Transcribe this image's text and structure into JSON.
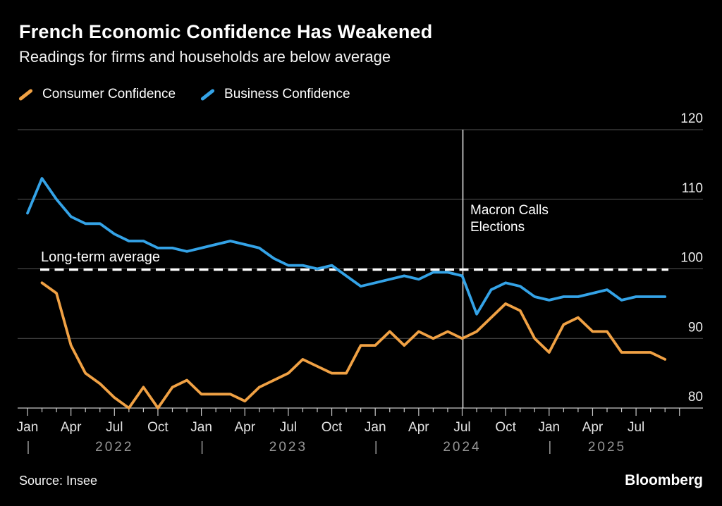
{
  "header": {
    "title": "French Economic Confidence Has Weakened",
    "subtitle": "Readings for firms and households are below average"
  },
  "legend": [
    {
      "label": "Consumer Confidence",
      "color": "#F0A144"
    },
    {
      "label": "Business Confidence",
      "color": "#34A3E7"
    }
  ],
  "annotations": {
    "long_term_average_label": "Long-term average",
    "macron": {
      "lines": [
        "Macron Calls",
        "Elections"
      ]
    }
  },
  "footer": {
    "source": "Source: Insee",
    "brand": "Bloomberg"
  },
  "chart_data": {
    "type": "line",
    "title": "French Economic Confidence Has Weakened",
    "subtitle": "Readings for firms and households are below average",
    "frequency": "monthly",
    "x_start": "2022-01",
    "x_end": "2025-09",
    "ylim": [
      80,
      120
    ],
    "yticks": [
      80,
      90,
      100,
      110,
      120
    ],
    "grid": "horizontal",
    "legend_position": "top-left",
    "colors": {
      "consumer": "#F0A144",
      "business": "#34A3E7",
      "gridline": "#555555",
      "axis": "#c8c8c8",
      "month_label": "#e3e3e3",
      "year_label": "#969696",
      "ytick_label": "#ededed",
      "reference_line": "#ffffff",
      "event_line": "#dedede"
    },
    "x_tick_labels": [
      {
        "i": 0,
        "label": "Jan"
      },
      {
        "i": 3,
        "label": "Apr"
      },
      {
        "i": 6,
        "label": "Jul"
      },
      {
        "i": 9,
        "label": "Oct"
      },
      {
        "i": 12,
        "label": "Jan"
      },
      {
        "i": 15,
        "label": "Apr"
      },
      {
        "i": 18,
        "label": "Jul"
      },
      {
        "i": 21,
        "label": "Oct"
      },
      {
        "i": 24,
        "label": "Jan"
      },
      {
        "i": 27,
        "label": "Apr"
      },
      {
        "i": 30,
        "label": "Jul"
      },
      {
        "i": 33,
        "label": "Oct"
      },
      {
        "i": 36,
        "label": "Jan"
      },
      {
        "i": 39,
        "label": "Apr"
      },
      {
        "i": 42,
        "label": "Jul"
      }
    ],
    "year_labels": [
      {
        "label": "2022",
        "i": 6
      },
      {
        "label": "2023",
        "i": 18
      },
      {
        "label": "2024",
        "i": 30
      },
      {
        "label": "2025",
        "i": 40
      }
    ],
    "year_separators": [
      0,
      12,
      24,
      36
    ],
    "reference_line": {
      "label": "Long-term average",
      "value": 99.9
    },
    "event_line": {
      "label": "Macron Calls Elections",
      "x_index": 30,
      "x_month": "2024-07"
    },
    "series": [
      {
        "name": "Consumer Confidence",
        "color": "#F0A144",
        "start_index": 1,
        "start_month": "2022-02",
        "values": [
          98,
          96.5,
          89,
          85,
          83.5,
          81.5,
          80,
          83,
          80,
          83,
          84,
          82,
          82,
          82,
          81,
          83,
          84,
          85,
          87,
          86,
          85,
          85,
          89,
          89,
          91,
          89,
          91,
          90,
          91,
          90,
          91,
          93,
          95,
          94,
          90,
          88,
          92,
          93,
          91,
          91,
          88,
          88,
          88,
          87
        ]
      },
      {
        "name": "Business Confidence",
        "color": "#34A3E7",
        "start_index": 0,
        "start_month": "2022-01",
        "values": [
          108,
          113,
          110,
          107.5,
          106.5,
          106.5,
          105,
          104,
          104,
          103,
          103,
          102.5,
          103,
          103.5,
          104,
          103.5,
          103,
          101.5,
          100.5,
          100.5,
          100,
          100.5,
          99,
          97.5,
          98,
          98.5,
          99,
          98.5,
          99.5,
          99.5,
          99,
          93.5,
          97,
          98,
          97.5,
          96,
          95.5,
          96,
          96,
          96.5,
          97,
          95.5,
          96,
          96,
          96
        ]
      }
    ]
  }
}
